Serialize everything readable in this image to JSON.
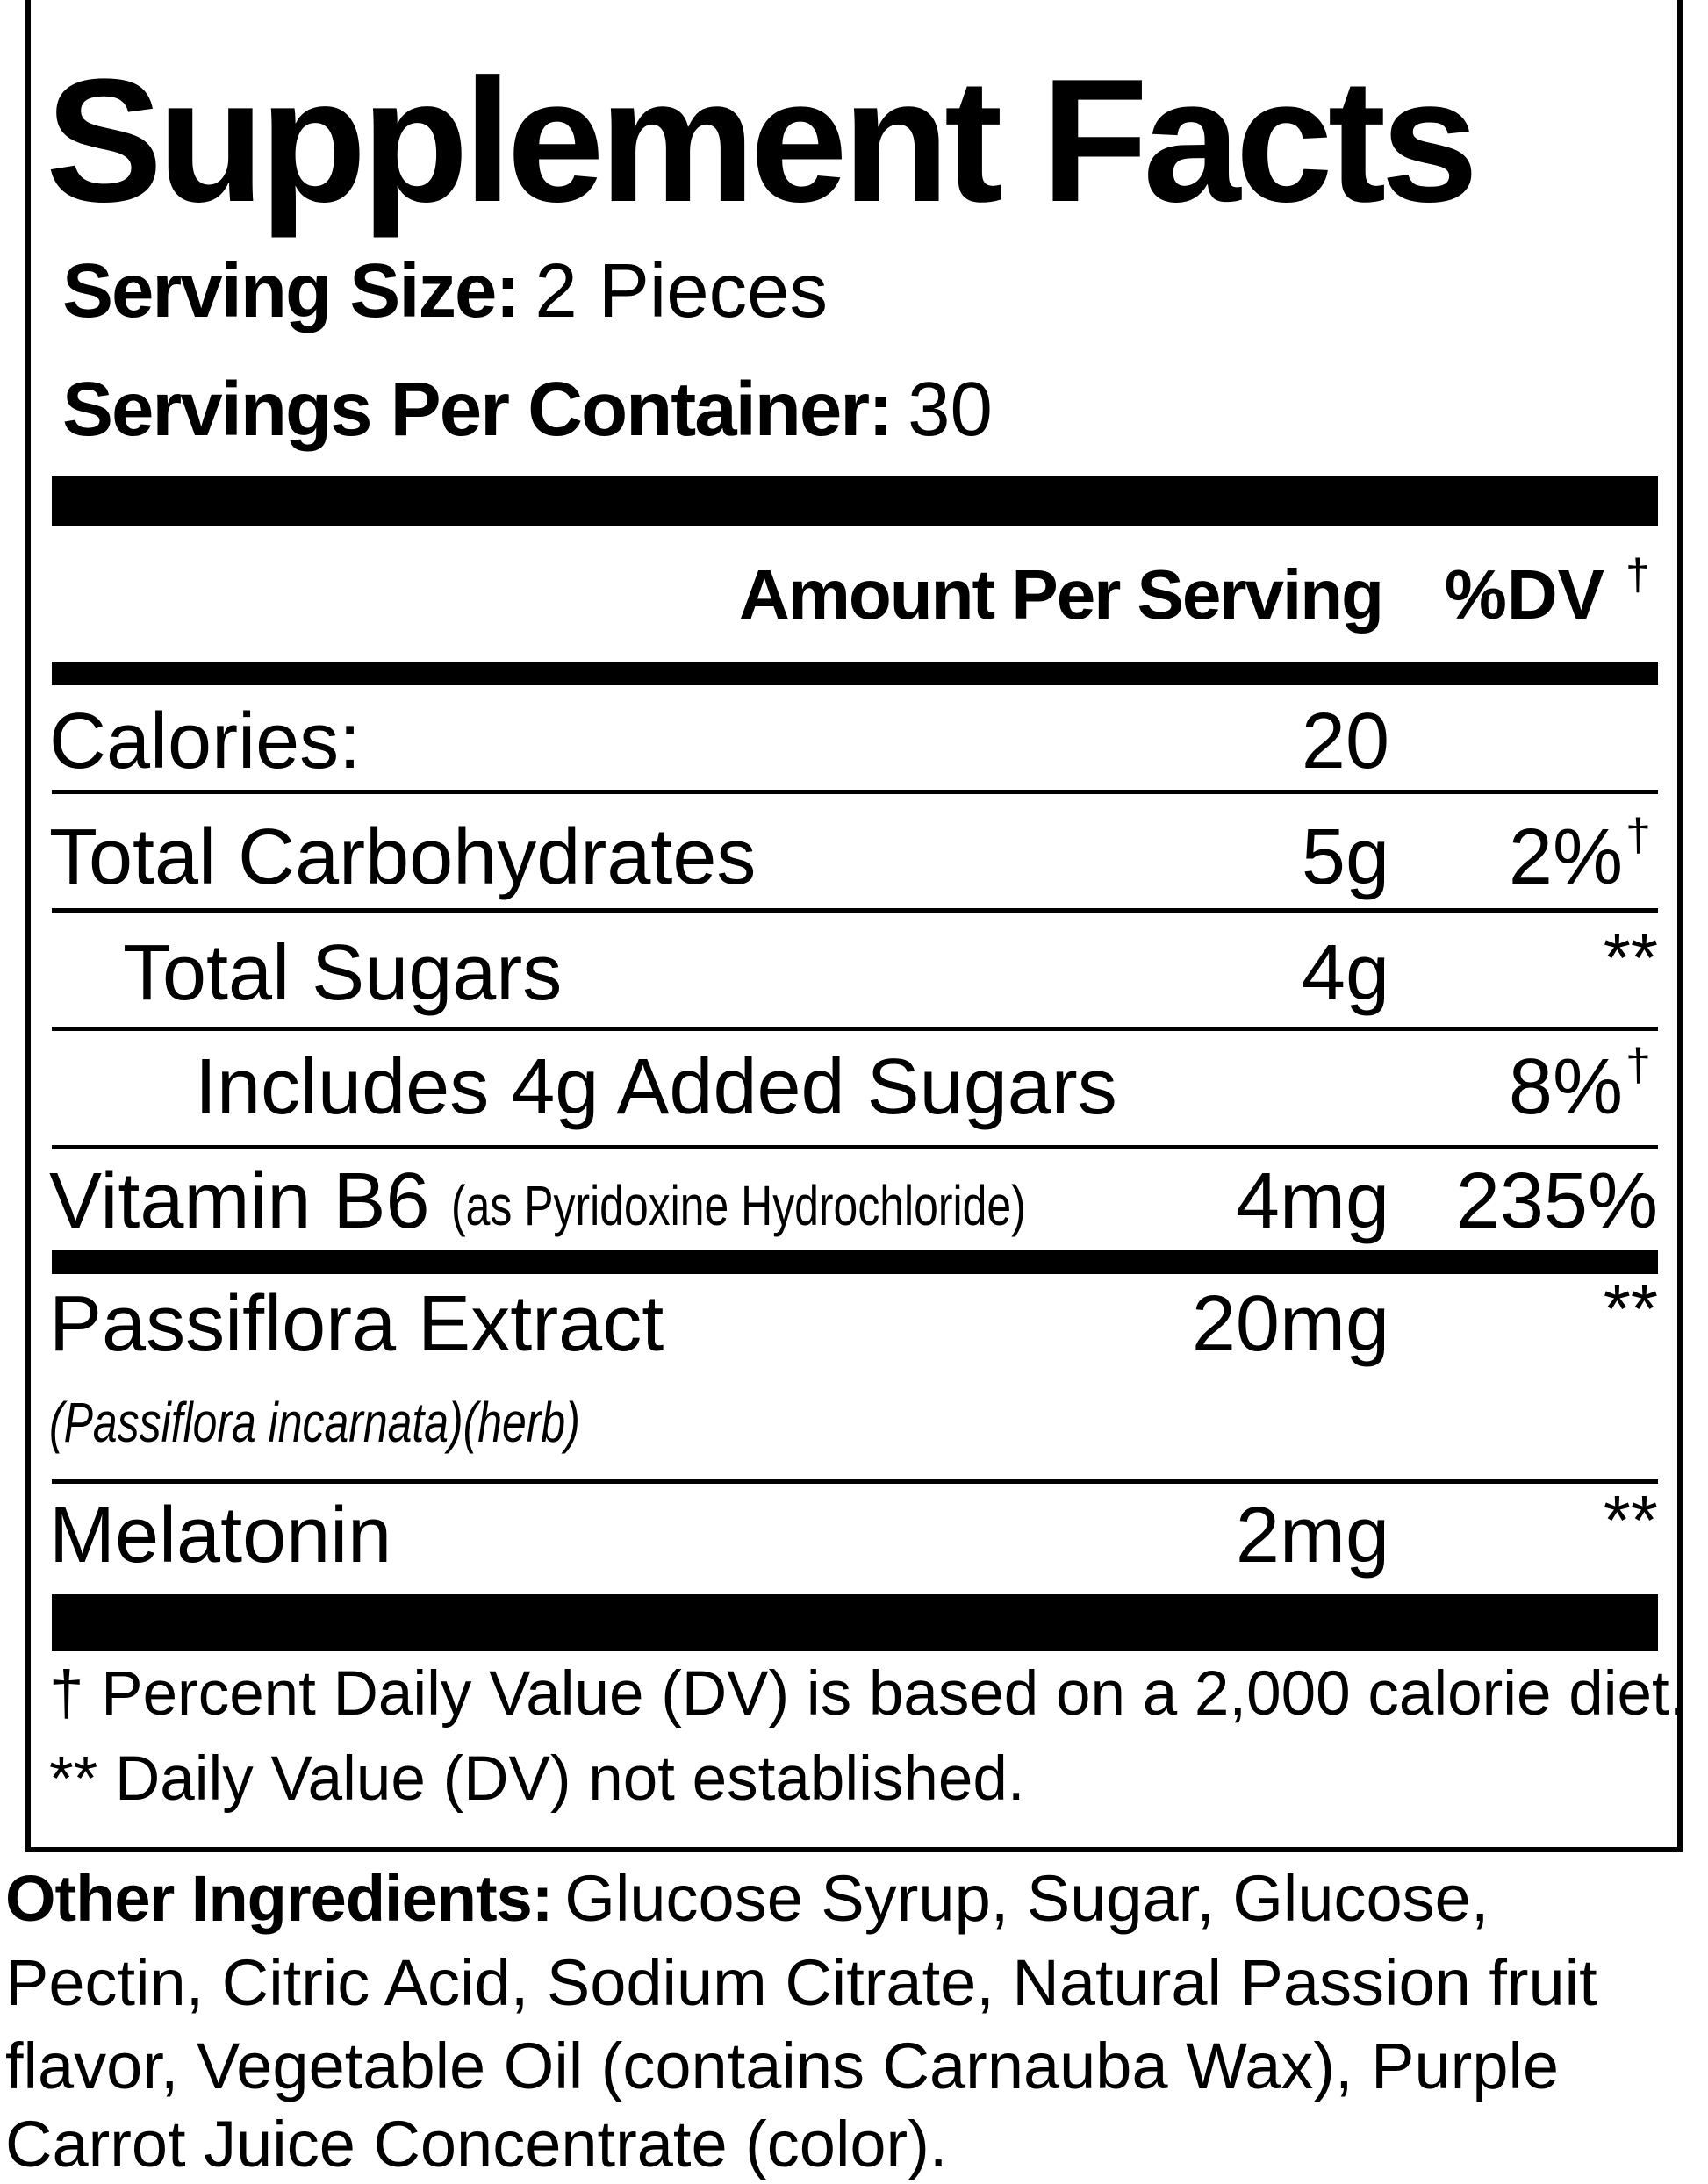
{
  "header": {
    "title": "Supplement Facts",
    "serving_size": {
      "label": "Serving Size:",
      "value": "2 Pieces"
    },
    "servings_per_container": {
      "label": "Servings Per Container:",
      "value": "30"
    }
  },
  "columns": {
    "amount": "Amount Per Serving",
    "dv": "%DV",
    "dv_mark": "†"
  },
  "rows": [
    {
      "name": "Calories:",
      "amount": "20"
    },
    {
      "name": "Total Carbohydrates",
      "amount": "5g",
      "dv": "2%",
      "dv_mark": "†"
    },
    {
      "name": "Total Sugars",
      "amount": "4g",
      "dv": "**"
    },
    {
      "name": "Includes 4g Added Sugars",
      "dv": "8%",
      "dv_mark": "†"
    },
    {
      "name": "Vitamin B6",
      "detail": "(as Pyridoxine Hydrochloride)",
      "amount": "4mg",
      "dv": "235%"
    },
    {
      "name": "Passiflora Extract",
      "detail": "(Passiflora incarnata)(herb)",
      "amount": "20mg",
      "dv": "**"
    },
    {
      "name": "Melatonin",
      "amount": "2mg",
      "dv": "**"
    }
  ],
  "footnotes": [
    "† Percent Daily Value (DV) is based on a 2,000 calorie diet.",
    "** Daily Value (DV) not established."
  ],
  "other_ingredients": {
    "label": "Other Ingredients:",
    "lines": [
      "Glucose Syrup, Sugar, Glucose,",
      "Pectin, Citric Acid, Sodium Citrate, Natural Passion fruit",
      "flavor, Vegetable Oil (contains Carnauba Wax), Purple",
      "Carrot Juice Concentrate (color)."
    ]
  }
}
